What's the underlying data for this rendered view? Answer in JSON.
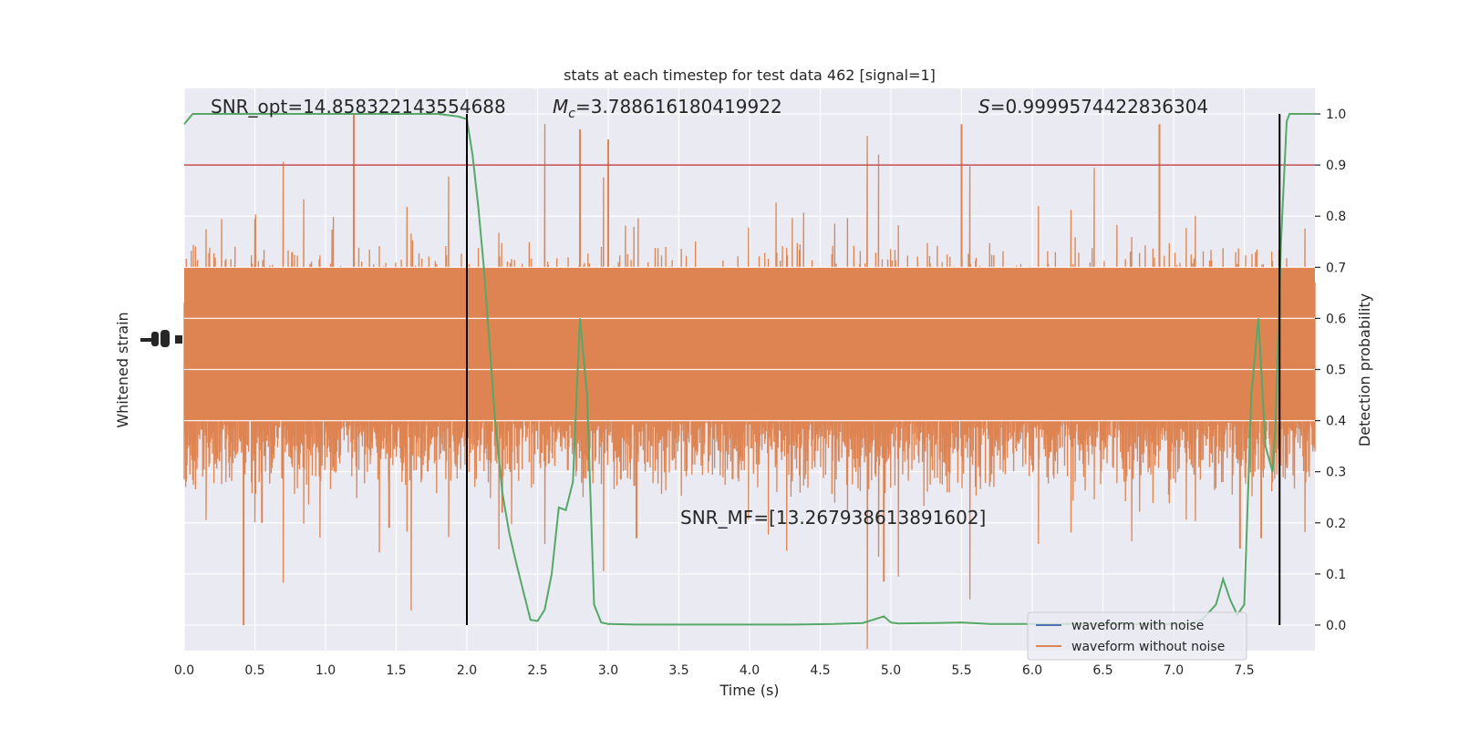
{
  "chart_data": {
    "type": "line",
    "title": "stats at each timestep for test data 462 [signal=1]",
    "xlabel": "Time (s)",
    "ylabel_left": "Whitened strain",
    "ylabel_right": "Detection probability",
    "xlim": [
      0.0,
      8.0
    ],
    "ylim_right": [
      -0.05,
      1.05
    ],
    "x_ticks": [
      0.0,
      0.5,
      1.0,
      1.5,
      2.0,
      2.5,
      3.0,
      3.5,
      4.0,
      4.5,
      5.0,
      5.5,
      6.0,
      6.5,
      7.0,
      7.5
    ],
    "x_tick_labels": [
      "0.0",
      "0.5",
      "1.0",
      "1.5",
      "2.0",
      "2.5",
      "3.0",
      "3.5",
      "4.0",
      "4.5",
      "5.0",
      "5.5",
      "6.0",
      "6.5",
      "7.0",
      "7.5"
    ],
    "y_ticks_right": [
      0.0,
      0.1,
      0.2,
      0.3,
      0.4,
      0.5,
      0.6,
      0.7,
      0.8,
      0.9,
      1.0
    ],
    "y_tick_labels_right": [
      "0.0",
      "0.1",
      "0.2",
      "0.3",
      "0.4",
      "0.5",
      "0.6",
      "0.7",
      "0.8",
      "0.9",
      "1.0"
    ],
    "grid": true,
    "legend_position": "lower-right",
    "annotations": {
      "snr_opt": "SNR_opt=14.858322143554688",
      "mc_symbol": "M",
      "mc_sub": "c",
      "mc_value": "=3.788616180419922",
      "s_symbol": "S",
      "s_value": "=0.9999574422836304",
      "snr_mf": "SNR_MF=[13.267938613891602]"
    },
    "threshold": 0.9,
    "vertical_markers": [
      2.0,
      7.75
    ],
    "series": [
      {
        "name": "waveform with noise",
        "color": "#4c72b0",
        "kind": "strain"
      },
      {
        "name": "waveform without noise",
        "color": "#dd8452",
        "kind": "strain"
      },
      {
        "color": "#55a868",
        "kind": "probability",
        "x": [
          0.0,
          0.06,
          0.12,
          0.2,
          0.4,
          0.6,
          0.8,
          1.0,
          1.2,
          1.4,
          1.6,
          1.8,
          1.94,
          2.0,
          2.04,
          2.08,
          2.12,
          2.16,
          2.2,
          2.25,
          2.3,
          2.35,
          2.4,
          2.45,
          2.5,
          2.55,
          2.6,
          2.65,
          2.7,
          2.75,
          2.8,
          2.85,
          2.9,
          2.95,
          3.0,
          3.2,
          3.5,
          3.8,
          4.0,
          4.3,
          4.6,
          4.8,
          4.95,
          5.0,
          5.05,
          5.3,
          5.5,
          5.7,
          6.0,
          6.3,
          6.6,
          6.9,
          7.1,
          7.2,
          7.3,
          7.35,
          7.4,
          7.45,
          7.5,
          7.55,
          7.6,
          7.65,
          7.7,
          7.72,
          7.76,
          7.8,
          7.82,
          7.86,
          7.9,
          7.95,
          8.0
        ],
        "y": [
          0.98,
          1.0,
          1.0,
          1.0,
          1.0,
          1.0,
          1.0,
          1.0,
          1.0,
          1.0,
          1.0,
          1.0,
          0.995,
          0.99,
          0.92,
          0.82,
          0.7,
          0.55,
          0.4,
          0.26,
          0.18,
          0.12,
          0.065,
          0.01,
          0.008,
          0.03,
          0.1,
          0.23,
          0.225,
          0.28,
          0.6,
          0.45,
          0.04,
          0.005,
          0.002,
          0.001,
          0.001,
          0.001,
          0.001,
          0.001,
          0.002,
          0.004,
          0.017,
          0.005,
          0.003,
          0.004,
          0.005,
          0.002,
          0.002,
          0.002,
          0.002,
          0.002,
          0.002,
          0.01,
          0.04,
          0.09,
          0.05,
          0.02,
          0.04,
          0.45,
          0.6,
          0.35,
          0.3,
          0.38,
          0.75,
          0.985,
          1.0,
          1.0,
          1.0,
          1.0,
          1.0
        ]
      }
    ]
  }
}
